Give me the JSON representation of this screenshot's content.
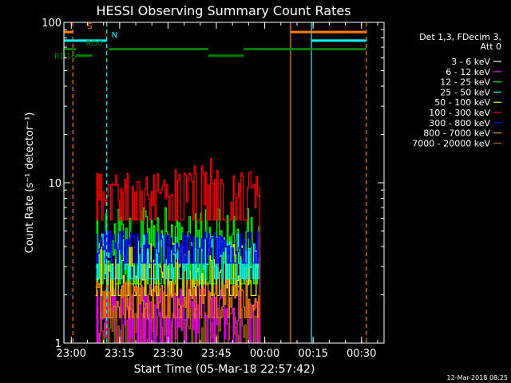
{
  "chart_data": {
    "type": "line",
    "title": "HESSI Observing Summary Count Rates",
    "xlabel": "Start Time (05-Mar-18 22:57:42)",
    "ylabel": "Count Rate (s⁻¹ detector⁻¹)",
    "y_scale": "log",
    "ylim": [
      1,
      100
    ],
    "xlim": [
      "22:57:42",
      "00:37:00"
    ],
    "x_ticks": [
      "23:00",
      "23:15",
      "23:30",
      "23:45",
      "00:00",
      "00:15",
      "00:30"
    ],
    "y_ticks": [
      "1",
      "10",
      "100"
    ],
    "grid": false,
    "legend_position": "right",
    "legend_title_lines": [
      "Det 1,3, FDecim 3,",
      "Att 0"
    ],
    "series": [
      {
        "name": "3 - 6 keV",
        "color": "#ffffff",
        "start": "23:07:30",
        "end": "23:58:30",
        "base": 0,
        "amp": 0
      },
      {
        "name": "6 - 12 keV",
        "color": "#ff00ff",
        "start": "23:07:30",
        "end": "23:58:30",
        "base": 1.05,
        "amp": 1.2
      },
      {
        "name": "12 - 25 keV",
        "color": "#00ff00",
        "start": "23:07:30",
        "end": "23:58:30",
        "base": 2.6,
        "amp": 4.5
      },
      {
        "name": "25 - 50 keV",
        "color": "#00ffff",
        "start": "23:07:30",
        "end": "23:58:30",
        "base": 2.8,
        "amp": 2.0
      },
      {
        "name": "50 - 100 keV",
        "color": "#ffff00",
        "start": "23:07:30",
        "end": "23:58:30",
        "base": 2.2,
        "amp": 2.0
      },
      {
        "name": "100 - 300 keV",
        "color": "#ff0000",
        "start": "23:07:30",
        "end": "23:58:30",
        "base": 6.5,
        "amp": 5.0
      },
      {
        "name": "300 - 800 keV",
        "color": "#0000ff",
        "start": "23:07:30",
        "end": "23:58:30",
        "base": 3.5,
        "amp": 1.5
      },
      {
        "name": "800 - 7000 keV",
        "color": "#ff8000",
        "start": "23:07:30",
        "end": "23:58:30",
        "base": 1.6,
        "amp": 0.9
      },
      {
        "name": "7000 - 20000 keV",
        "color": "#a06000",
        "start": "23:07:30",
        "end": "23:58:30",
        "base": 1.05,
        "amp": 0.6
      }
    ],
    "vertical_markers": [
      {
        "time": "22:57:42",
        "color": "#00ffff",
        "style": "solid"
      },
      {
        "time": "23:00:30",
        "color": "#ff8000",
        "style": "dashed"
      },
      {
        "time": "23:11:00",
        "color": "#00ffff",
        "style": "dashed"
      },
      {
        "time": "00:08:00",
        "color": "#ff8000",
        "style": "solid"
      },
      {
        "time": "00:14:30",
        "color": "#00ffff",
        "style": "solid"
      },
      {
        "time": "00:31:30",
        "color": "#ff8000",
        "style": "dashed"
      }
    ],
    "flag_bars": [
      {
        "label": "S",
        "color": "#ff8000",
        "y": 87,
        "segments": [
          [
            "22:57:42",
            "23:00:30"
          ],
          [
            "00:08:00",
            "00:31:30"
          ]
        ]
      },
      {
        "label": "N",
        "color": "#00ffff",
        "y": 77,
        "segments": [
          [
            "22:57:42",
            "23:11:00"
          ],
          [
            "00:14:30",
            "00:31:30"
          ]
        ]
      },
      {
        "label": "RD0",
        "color": "#008000",
        "y": 68,
        "segments": [
          [
            "22:57:42",
            "23:01:30"
          ],
          [
            "23:11:30",
            "23:42:30"
          ],
          [
            "23:53:30",
            "00:31:30"
          ]
        ]
      },
      {
        "label": "RD16",
        "color": "#008000",
        "y": 62,
        "segments": [
          [
            "23:01:30",
            "23:06:30"
          ],
          [
            "23:42:30",
            "23:53:30"
          ]
        ]
      }
    ]
  },
  "footer": {
    "timestamp": "12-Mar-2018 08:25"
  }
}
